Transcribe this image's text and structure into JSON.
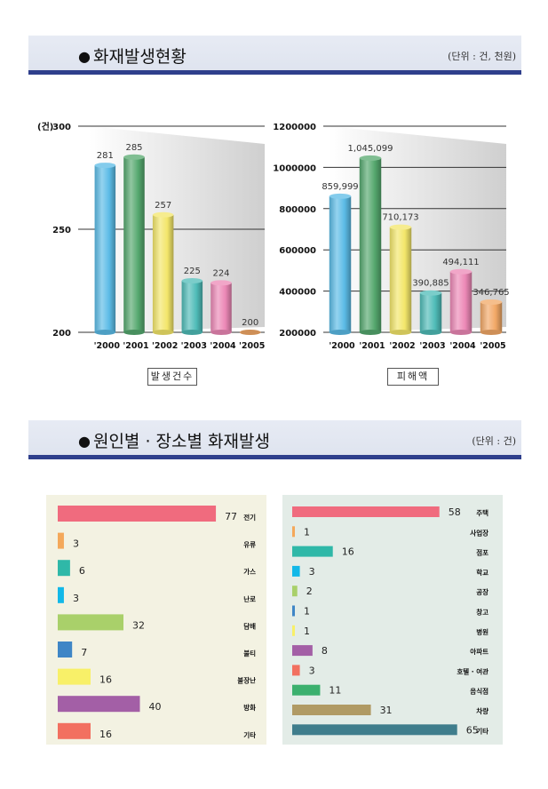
{
  "section1": {
    "title": "화재발생현황",
    "unit": "(단위 : 건, 천원)"
  },
  "section2": {
    "title": "원인별 · 장소별  화재발생",
    "unit": "(단위 : 건)"
  },
  "chart_data": [
    {
      "type": "bar",
      "caption": "발생건수",
      "ylabel": "(건)",
      "categories": [
        "'2000",
        "'2001",
        "'2002",
        "'2003",
        "'2004",
        "'2005"
      ],
      "values": [
        281,
        285,
        257,
        225,
        224,
        200
      ],
      "value_labels": [
        "281",
        "285",
        "257",
        "225",
        "224",
        "200"
      ],
      "ylim": [
        200,
        300
      ],
      "yticks": [
        200,
        250,
        300
      ],
      "ytick_labels": [
        "200",
        "250",
        "300"
      ],
      "colors": [
        "#5bbbe6",
        "#55a86e",
        "#f3e66a",
        "#4fbcb8",
        "#ec88b6",
        "#f2a866"
      ]
    },
    {
      "type": "bar",
      "caption": "피해액",
      "ylabel": "",
      "categories": [
        "'2000",
        "'2001",
        "'2002",
        "'2003",
        "'2004",
        "'2005"
      ],
      "values": [
        859999,
        1045099,
        710173,
        390885,
        494111,
        346765
      ],
      "value_labels": [
        "859,999",
        "1,045,099",
        "710,173",
        "390,885",
        "494,111",
        "346,765"
      ],
      "ylim": [
        200000,
        1200000
      ],
      "yticks": [
        200000,
        400000,
        600000,
        800000,
        1000000,
        1200000
      ],
      "ytick_labels": [
        "200000",
        "400000",
        "600000",
        "800000",
        "1000000",
        "1200000"
      ],
      "colors": [
        "#5bbbe6",
        "#55a86e",
        "#f3e66a",
        "#4fbcb8",
        "#ec88b6",
        "#f2a866"
      ]
    },
    {
      "type": "bar",
      "orientation": "horizontal",
      "categories": [
        "전기",
        "유류",
        "가스",
        "난로",
        "담배",
        "불티",
        "불장난",
        "방화",
        "기타"
      ],
      "values": [
        77,
        3,
        6,
        3,
        32,
        7,
        16,
        40,
        16
      ],
      "xlim": [
        0,
        80
      ],
      "colors": [
        "#f06b7e",
        "#f4a85a",
        "#2fb8a8",
        "#12b8e8",
        "#a9d06a",
        "#3f86c6",
        "#f8f068",
        "#a35fa6",
        "#f27060"
      ]
    },
    {
      "type": "bar",
      "orientation": "horizontal",
      "categories": [
        "주택",
        "사업장",
        "점포",
        "학교",
        "공장",
        "창고",
        "병원",
        "아파트",
        "호텔 · 여관",
        "음식점",
        "차량",
        "기타"
      ],
      "values": [
        58,
        1,
        16,
        3,
        2,
        1,
        1,
        8,
        3,
        11,
        31,
        65
      ],
      "xlim": [
        0,
        70
      ],
      "colors": [
        "#f06b7e",
        "#f4a85a",
        "#2fb8a8",
        "#12b8e8",
        "#a9d06a",
        "#3f86c6",
        "#f8f068",
        "#a35fa6",
        "#f27060",
        "#3bb06e",
        "#b09a64",
        "#3f7d8c"
      ]
    }
  ]
}
